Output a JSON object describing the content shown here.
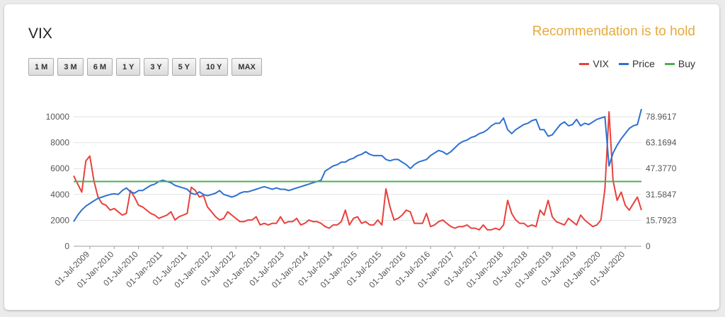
{
  "header": {
    "title": "VIX",
    "recommendation": "Recommendation is to hold"
  },
  "range_buttons": [
    "1 M",
    "3 M",
    "6 M",
    "1 Y",
    "3 Y",
    "5 Y",
    "10 Y",
    "MAX"
  ],
  "colors": {
    "vix": "#e8413c",
    "price": "#2e71d1",
    "buy": "#4caf50",
    "recommendation": "#e8a93a"
  },
  "chart_data": {
    "type": "line",
    "legend_position": "top-right",
    "grid": true,
    "x_ticks": [
      "01-Jul-2009",
      "01-Jan-2010",
      "01-Jul-2010",
      "01-Jan-2011",
      "01-Jul-2011",
      "01-Jan-2012",
      "01-Jul-2012",
      "01-Jan-2013",
      "01-Jul-2013",
      "01-Jan-2014",
      "01-Jul-2014",
      "01-Jan-2015",
      "01-Jul-2015",
      "01-Jan-2016",
      "01-Jul-2016",
      "01-Jan-2017",
      "01-Jul-2017",
      "01-Jan-2018",
      "01-Jul-2018",
      "01-Jan-2019",
      "01-Jul-2019",
      "01-Jan-2020",
      "01-Jul-2020"
    ],
    "x_range": [
      "2009-03",
      "2020-11"
    ],
    "y_left": {
      "ticks": [
        "0",
        "2000",
        "4000",
        "6000",
        "8000",
        "10000"
      ],
      "range": [
        0,
        10000
      ]
    },
    "y_right": {
      "ticks": [
        "0",
        "15.7923",
        "31.5847",
        "47.3770",
        "63.1694",
        "78.9617"
      ],
      "range": [
        0,
        78.9617
      ]
    },
    "series": [
      {
        "name": "VIX",
        "axis": "right",
        "points": [
          [
            "2009-03",
            43
          ],
          [
            "2009-04",
            38
          ],
          [
            "2009-05",
            33
          ],
          [
            "2009-06",
            52
          ],
          [
            "2009-07",
            55
          ],
          [
            "2009-08",
            40
          ],
          [
            "2009-09",
            30
          ],
          [
            "2009-10",
            26
          ],
          [
            "2009-11",
            25
          ],
          [
            "2009-12",
            22
          ],
          [
            "2010-01",
            23
          ],
          [
            "2010-02",
            21
          ],
          [
            "2010-03",
            19
          ],
          [
            "2010-04",
            20
          ],
          [
            "2010-05",
            34
          ],
          [
            "2010-06",
            30
          ],
          [
            "2010-07",
            25
          ],
          [
            "2010-08",
            24
          ],
          [
            "2010-09",
            22
          ],
          [
            "2010-10",
            20
          ],
          [
            "2010-11",
            19
          ],
          [
            "2010-12",
            17
          ],
          [
            "2011-01",
            18
          ],
          [
            "2011-02",
            19
          ],
          [
            "2011-03",
            21
          ],
          [
            "2011-04",
            16
          ],
          [
            "2011-05",
            18
          ],
          [
            "2011-06",
            19
          ],
          [
            "2011-07",
            20
          ],
          [
            "2011-08",
            36
          ],
          [
            "2011-09",
            34
          ],
          [
            "2011-10",
            30
          ],
          [
            "2011-11",
            31
          ],
          [
            "2011-12",
            24
          ],
          [
            "2012-01",
            21
          ],
          [
            "2012-02",
            18
          ],
          [
            "2012-03",
            16
          ],
          [
            "2012-04",
            17
          ],
          [
            "2012-05",
            21
          ],
          [
            "2012-06",
            19
          ],
          [
            "2012-07",
            17
          ],
          [
            "2012-08",
            15
          ],
          [
            "2012-09",
            15
          ],
          [
            "2012-10",
            16
          ],
          [
            "2012-11",
            16
          ],
          [
            "2012-12",
            18
          ],
          [
            "2013-01",
            13
          ],
          [
            "2013-02",
            14
          ],
          [
            "2013-03",
            13
          ],
          [
            "2013-04",
            14
          ],
          [
            "2013-05",
            14
          ],
          [
            "2013-06",
            18
          ],
          [
            "2013-07",
            14
          ],
          [
            "2013-08",
            15
          ],
          [
            "2013-09",
            15
          ],
          [
            "2013-10",
            17
          ],
          [
            "2013-11",
            13
          ],
          [
            "2013-12",
            14
          ],
          [
            "2014-01",
            16
          ],
          [
            "2014-02",
            15
          ],
          [
            "2014-03",
            15
          ],
          [
            "2014-04",
            14
          ],
          [
            "2014-05",
            12
          ],
          [
            "2014-06",
            11
          ],
          [
            "2014-07",
            13
          ],
          [
            "2014-08",
            13
          ],
          [
            "2014-09",
            15
          ],
          [
            "2014-10",
            22
          ],
          [
            "2014-11",
            13
          ],
          [
            "2014-12",
            17
          ],
          [
            "2015-01",
            18
          ],
          [
            "2015-02",
            14
          ],
          [
            "2015-03",
            15
          ],
          [
            "2015-04",
            13
          ],
          [
            "2015-05",
            13
          ],
          [
            "2015-06",
            16
          ],
          [
            "2015-07",
            13
          ],
          [
            "2015-08",
            35
          ],
          [
            "2015-09",
            24
          ],
          [
            "2015-10",
            16
          ],
          [
            "2015-11",
            17
          ],
          [
            "2015-12",
            19
          ],
          [
            "2016-01",
            22
          ],
          [
            "2016-02",
            21
          ],
          [
            "2016-03",
            14
          ],
          [
            "2016-04",
            14
          ],
          [
            "2016-05",
            14
          ],
          [
            "2016-06",
            20
          ],
          [
            "2016-07",
            12
          ],
          [
            "2016-08",
            13
          ],
          [
            "2016-09",
            15
          ],
          [
            "2016-10",
            16
          ],
          [
            "2016-11",
            14
          ],
          [
            "2016-12",
            12
          ],
          [
            "2017-01",
            11
          ],
          [
            "2017-02",
            12
          ],
          [
            "2017-03",
            12
          ],
          [
            "2017-04",
            13
          ],
          [
            "2017-05",
            11
          ],
          [
            "2017-06",
            11
          ],
          [
            "2017-07",
            10
          ],
          [
            "2017-08",
            13
          ],
          [
            "2017-09",
            10
          ],
          [
            "2017-10",
            10
          ],
          [
            "2017-11",
            11
          ],
          [
            "2017-12",
            10
          ],
          [
            "2018-01",
            13
          ],
          [
            "2018-02",
            28
          ],
          [
            "2018-03",
            20
          ],
          [
            "2018-04",
            16
          ],
          [
            "2018-05",
            14
          ],
          [
            "2018-06",
            14
          ],
          [
            "2018-07",
            12
          ],
          [
            "2018-08",
            13
          ],
          [
            "2018-09",
            12
          ],
          [
            "2018-10",
            22
          ],
          [
            "2018-11",
            19
          ],
          [
            "2018-12",
            28
          ],
          [
            "2019-01",
            18
          ],
          [
            "2019-02",
            15
          ],
          [
            "2019-03",
            14
          ],
          [
            "2019-04",
            13
          ],
          [
            "2019-05",
            17
          ],
          [
            "2019-06",
            15
          ],
          [
            "2019-07",
            13
          ],
          [
            "2019-08",
            19
          ],
          [
            "2019-09",
            16
          ],
          [
            "2019-10",
            14
          ],
          [
            "2019-11",
            12
          ],
          [
            "2019-12",
            13
          ],
          [
            "2020-01",
            16
          ],
          [
            "2020-02",
            35
          ],
          [
            "2020-03",
            82
          ],
          [
            "2020-04",
            40
          ],
          [
            "2020-05",
            28
          ],
          [
            "2020-06",
            33
          ],
          [
            "2020-07",
            25
          ],
          [
            "2020-08",
            22
          ],
          [
            "2020-09",
            26
          ],
          [
            "2020-10",
            30
          ],
          [
            "2020-11",
            22
          ]
        ]
      },
      {
        "name": "Price",
        "axis": "left",
        "points": [
          [
            "2009-03",
            1900
          ],
          [
            "2009-04",
            2400
          ],
          [
            "2009-05",
            2800
          ],
          [
            "2009-06",
            3100
          ],
          [
            "2009-07",
            3300
          ],
          [
            "2009-08",
            3500
          ],
          [
            "2009-09",
            3700
          ],
          [
            "2009-10",
            3800
          ],
          [
            "2009-11",
            3900
          ],
          [
            "2009-12",
            4000
          ],
          [
            "2010-01",
            4050
          ],
          [
            "2010-02",
            4000
          ],
          [
            "2010-03",
            4300
          ],
          [
            "2010-04",
            4500
          ],
          [
            "2010-05",
            4200
          ],
          [
            "2010-06",
            4100
          ],
          [
            "2010-07",
            4300
          ],
          [
            "2010-08",
            4300
          ],
          [
            "2010-09",
            4500
          ],
          [
            "2010-10",
            4700
          ],
          [
            "2010-11",
            4800
          ],
          [
            "2010-12",
            5000
          ],
          [
            "2011-01",
            5100
          ],
          [
            "2011-02",
            5000
          ],
          [
            "2011-03",
            4900
          ],
          [
            "2011-04",
            4700
          ],
          [
            "2011-05",
            4600
          ],
          [
            "2011-06",
            4500
          ],
          [
            "2011-07",
            4400
          ],
          [
            "2011-08",
            4100
          ],
          [
            "2011-09",
            4000
          ],
          [
            "2011-10",
            4200
          ],
          [
            "2011-11",
            4000
          ],
          [
            "2011-12",
            3900
          ],
          [
            "2012-01",
            4000
          ],
          [
            "2012-02",
            4100
          ],
          [
            "2012-03",
            4300
          ],
          [
            "2012-04",
            4000
          ],
          [
            "2012-05",
            3900
          ],
          [
            "2012-06",
            3800
          ],
          [
            "2012-07",
            3900
          ],
          [
            "2012-08",
            4100
          ],
          [
            "2012-09",
            4200
          ],
          [
            "2012-10",
            4200
          ],
          [
            "2012-11",
            4300
          ],
          [
            "2012-12",
            4400
          ],
          [
            "2013-01",
            4500
          ],
          [
            "2013-02",
            4600
          ],
          [
            "2013-03",
            4500
          ],
          [
            "2013-04",
            4400
          ],
          [
            "2013-05",
            4500
          ],
          [
            "2013-06",
            4400
          ],
          [
            "2013-07",
            4400
          ],
          [
            "2013-08",
            4300
          ],
          [
            "2013-09",
            4400
          ],
          [
            "2013-10",
            4500
          ],
          [
            "2013-11",
            4600
          ],
          [
            "2013-12",
            4700
          ],
          [
            "2014-01",
            4800
          ],
          [
            "2014-02",
            4900
          ],
          [
            "2014-03",
            5000
          ],
          [
            "2014-04",
            5100
          ],
          [
            "2014-05",
            5800
          ],
          [
            "2014-06",
            6000
          ],
          [
            "2014-07",
            6200
          ],
          [
            "2014-08",
            6300
          ],
          [
            "2014-09",
            6500
          ],
          [
            "2014-10",
            6500
          ],
          [
            "2014-11",
            6700
          ],
          [
            "2014-12",
            6800
          ],
          [
            "2015-01",
            7000
          ],
          [
            "2015-02",
            7100
          ],
          [
            "2015-03",
            7300
          ],
          [
            "2015-04",
            7100
          ],
          [
            "2015-05",
            7000
          ],
          [
            "2015-06",
            7000
          ],
          [
            "2015-07",
            7000
          ],
          [
            "2015-08",
            6700
          ],
          [
            "2015-09",
            6600
          ],
          [
            "2015-10",
            6700
          ],
          [
            "2015-11",
            6700
          ],
          [
            "2015-12",
            6500
          ],
          [
            "2016-01",
            6300
          ],
          [
            "2016-02",
            6000
          ],
          [
            "2016-03",
            6300
          ],
          [
            "2016-04",
            6500
          ],
          [
            "2016-05",
            6600
          ],
          [
            "2016-06",
            6700
          ],
          [
            "2016-07",
            7000
          ],
          [
            "2016-08",
            7200
          ],
          [
            "2016-09",
            7400
          ],
          [
            "2016-10",
            7300
          ],
          [
            "2016-11",
            7100
          ],
          [
            "2016-12",
            7300
          ],
          [
            "2017-01",
            7600
          ],
          [
            "2017-02",
            7900
          ],
          [
            "2017-03",
            8100
          ],
          [
            "2017-04",
            8200
          ],
          [
            "2017-05",
            8400
          ],
          [
            "2017-06",
            8500
          ],
          [
            "2017-07",
            8700
          ],
          [
            "2017-08",
            8800
          ],
          [
            "2017-09",
            9000
          ],
          [
            "2017-10",
            9300
          ],
          [
            "2017-11",
            9500
          ],
          [
            "2017-12",
            9500
          ],
          [
            "2018-01",
            9900
          ],
          [
            "2018-02",
            9000
          ],
          [
            "2018-03",
            8700
          ],
          [
            "2018-04",
            9000
          ],
          [
            "2018-05",
            9200
          ],
          [
            "2018-06",
            9400
          ],
          [
            "2018-07",
            9500
          ],
          [
            "2018-08",
            9700
          ],
          [
            "2018-09",
            9800
          ],
          [
            "2018-10",
            9000
          ],
          [
            "2018-11",
            9000
          ],
          [
            "2018-12",
            8500
          ],
          [
            "2019-01",
            8600
          ],
          [
            "2019-02",
            9000
          ],
          [
            "2019-03",
            9400
          ],
          [
            "2019-04",
            9600
          ],
          [
            "2019-05",
            9300
          ],
          [
            "2019-06",
            9400
          ],
          [
            "2019-07",
            9800
          ],
          [
            "2019-08",
            9300
          ],
          [
            "2019-09",
            9500
          ],
          [
            "2019-10",
            9400
          ],
          [
            "2019-11",
            9600
          ],
          [
            "2019-12",
            9800
          ],
          [
            "2020-01",
            9900
          ],
          [
            "2020-02",
            10000
          ],
          [
            "2020-03",
            6200
          ],
          [
            "2020-04",
            7200
          ],
          [
            "2020-05",
            7800
          ],
          [
            "2020-06",
            8300
          ],
          [
            "2020-07",
            8700
          ],
          [
            "2020-08",
            9100
          ],
          [
            "2020-09",
            9300
          ],
          [
            "2020-10",
            9400
          ],
          [
            "2020-11",
            10600
          ]
        ]
      },
      {
        "name": "Buy",
        "axis": "left",
        "points": [
          [
            "2009-03",
            5000
          ],
          [
            "2020-11",
            5000
          ]
        ]
      }
    ]
  }
}
